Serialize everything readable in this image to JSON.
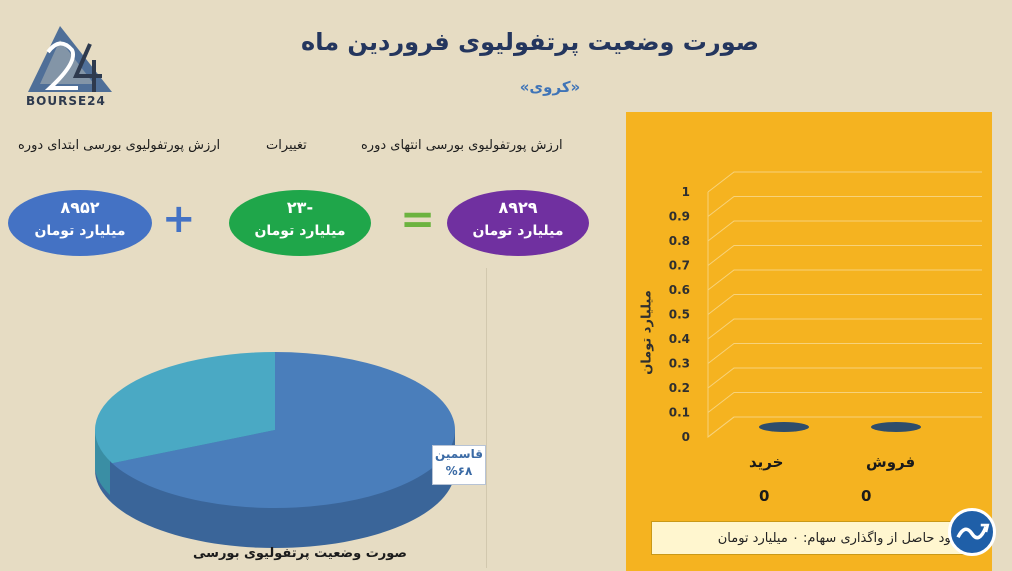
{
  "header": {
    "title": "صورت وضعیت پرتفولیوی فروردین ماه",
    "subtitle": "«کروی»",
    "logo_text": "BOURSE24"
  },
  "summary": {
    "start_label": "ارزش پورتفولیوی بورسی ابتدای دوره",
    "change_label": "تغییرات",
    "end_label": "ارزش پورتفولیوی بورسی انتهای دوره",
    "start_value": "۸۹۵۲",
    "change_value": "-۲۳",
    "end_value": "۸۹۲۹",
    "unit": "میلیارد تومان",
    "plus_sign": "+",
    "equals_sign": "=",
    "colors": {
      "start": "#4472c4",
      "change": "#1fa64a",
      "end": "#7030a0"
    }
  },
  "chart_data": [
    {
      "type": "pie",
      "title": "صورت وضعیت پرتفولیوی بورسی",
      "slices": [
        {
          "name": "قاسمین",
          "value": 68,
          "label": "%۶۸",
          "color": "#4a7ebb"
        },
        {
          "name": "",
          "value": 32,
          "label": "",
          "color": "#4aa9c4"
        }
      ]
    },
    {
      "type": "bar",
      "categories": [
        "فروش",
        "خرید"
      ],
      "values": [
        0,
        0
      ],
      "value_labels": [
        "0",
        "0"
      ],
      "ylabel": "میلیارد تومان",
      "ylim": [
        0,
        1
      ],
      "yticks": [
        "0",
        "0.1",
        "0.2",
        "0.3",
        "0.4",
        "0.5",
        "0.6",
        "0.7",
        "0.8",
        "0.9",
        "1"
      ],
      "grid": true,
      "bar_color": "#2f4d6b",
      "background": "#f5b320"
    }
  ],
  "profit_note": "سود حاصل از واگذاری سهام: ۰  میلیارد تومان"
}
